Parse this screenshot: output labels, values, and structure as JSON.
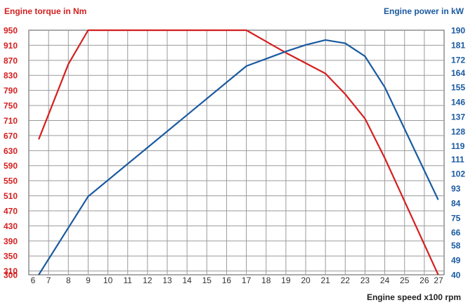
{
  "chart_data": {
    "type": "line",
    "title_left": "Engine torque in Nm",
    "title_right": "Engine power in kW",
    "xlabel": "Engine speed x100 rpm",
    "x_ticks": [
      "6",
      "7",
      "8",
      "9",
      "10",
      "11",
      "12",
      "13",
      "14",
      "15",
      "16",
      "17",
      "18",
      "19",
      "20",
      "21",
      "22",
      "23",
      "24",
      "25",
      "26",
      "27"
    ],
    "xlim": [
      6,
      27
    ],
    "y_left": {
      "ticks": [
        "300",
        "310",
        "350",
        "390",
        "430",
        "470",
        "510",
        "550",
        "590",
        "630",
        "670",
        "710",
        "750",
        "790",
        "830",
        "870",
        "910",
        "950"
      ],
      "ylim": [
        300,
        950
      ],
      "color": "#d42020"
    },
    "y_right": {
      "ticks": [
        "40",
        "49",
        "58",
        "66",
        "75",
        "84",
        "93",
        "102",
        "111",
        "119",
        "128",
        "137",
        "146",
        "155",
        "164",
        "172",
        "181",
        "190"
      ],
      "ylim": [
        40,
        190
      ],
      "color": "#1a5aa0"
    },
    "grid": true,
    "series": [
      {
        "name": "Engine torque in Nm",
        "axis": "left",
        "color": "#d42020",
        "x": [
          6.5,
          8,
          9,
          17,
          19,
          21,
          22,
          23,
          24,
          26.7
        ],
        "y": [
          660,
          860,
          950,
          950,
          890,
          835,
          780,
          715,
          610,
          300
        ]
      },
      {
        "name": "Engine power in kW",
        "axis": "right",
        "color": "#1a5aa0",
        "x": [
          6.5,
          9,
          17,
          19,
          20,
          21,
          22,
          23,
          24,
          26.7
        ],
        "y": [
          40,
          88,
          168,
          177,
          181,
          184,
          182,
          174,
          155,
          86
        ]
      }
    ]
  }
}
